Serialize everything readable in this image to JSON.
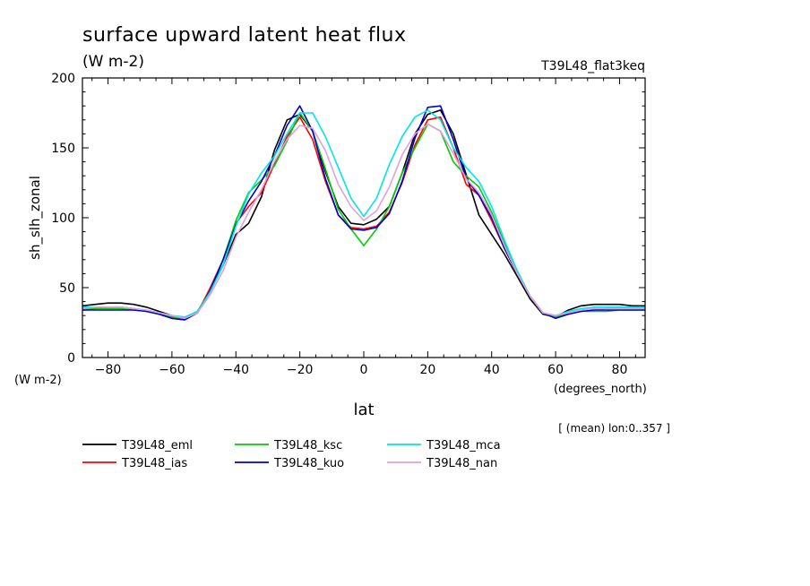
{
  "chart_data": {
    "type": "line",
    "title": "surface upward latent heat flux",
    "units": "(W m-2)",
    "subtitle_right": "T39L48_flat3keq",
    "xlabel": "lat",
    "x_units": "(degrees_north)",
    "ylabel": "sh_slh_zonal",
    "y_units": "(W m-2)",
    "note": "[ (mean) lon:0..357 ]",
    "xlim": [
      -88,
      88
    ],
    "ylim": [
      0,
      200
    ],
    "x_ticks": [
      -80,
      -60,
      -40,
      -20,
      0,
      20,
      40,
      60,
      80
    ],
    "y_ticks": [
      0,
      50,
      100,
      150,
      200
    ],
    "x": [
      -88,
      -84,
      -80,
      -76,
      -72,
      -68,
      -64,
      -60,
      -56,
      -52,
      -48,
      -44,
      -40,
      -36,
      -32,
      -28,
      -24,
      -20,
      -16,
      -12,
      -8,
      -4,
      0,
      4,
      8,
      12,
      16,
      20,
      24,
      28,
      32,
      36,
      40,
      44,
      48,
      52,
      56,
      60,
      64,
      68,
      72,
      76,
      80,
      84,
      88
    ],
    "series": [
      {
        "name": "T39L48_eml",
        "color": "#000000",
        "values": [
          37,
          38,
          39,
          39,
          38,
          36,
          33,
          30,
          28,
          33,
          48,
          66,
          88,
          96,
          115,
          148,
          170,
          174,
          162,
          133,
          108,
          96,
          95,
          99,
          108,
          132,
          160,
          174,
          177,
          160,
          131,
          102,
          88,
          74,
          58,
          42,
          31,
          29,
          34,
          37,
          38,
          38,
          38,
          37,
          37
        ]
      },
      {
        "name": "T39L48_ias",
        "color": "#ff0000",
        "values": [
          34,
          35,
          36,
          36,
          35,
          33,
          31,
          28,
          27,
          32,
          50,
          70,
          96,
          108,
          118,
          138,
          158,
          172,
          156,
          126,
          102,
          93,
          92,
          94,
          104,
          125,
          152,
          170,
          172,
          150,
          124,
          116,
          98,
          78,
          60,
          44,
          32,
          29,
          31,
          33,
          34,
          35,
          35,
          35,
          35
        ]
      },
      {
        "name": "T39L48_ksc",
        "color": "#00cc00",
        "values": [
          35,
          35,
          35,
          35,
          34,
          33,
          31,
          29,
          28,
          32,
          48,
          70,
          98,
          118,
          127,
          137,
          155,
          175,
          162,
          135,
          106,
          92,
          80,
          92,
          108,
          132,
          150,
          167,
          162,
          140,
          130,
          122,
          104,
          82,
          62,
          44,
          32,
          29,
          32,
          33,
          33,
          33,
          34,
          34,
          34
        ]
      },
      {
        "name": "T39L48_kuo",
        "color": "#0000cc",
        "values": [
          34,
          34,
          34,
          34,
          34,
          33,
          31,
          28,
          27,
          32,
          48,
          70,
          95,
          112,
          126,
          144,
          166,
          180,
          162,
          128,
          102,
          92,
          91,
          93,
          103,
          126,
          157,
          179,
          180,
          156,
          128,
          116,
          100,
          78,
          60,
          44,
          32,
          28,
          31,
          33,
          34,
          34,
          34,
          34,
          34
        ]
      },
      {
        "name": "T39L48_mca",
        "color": "#00e5e5",
        "values": [
          36,
          36,
          36,
          36,
          35,
          34,
          32,
          30,
          29,
          33,
          47,
          66,
          94,
          117,
          132,
          144,
          160,
          175,
          175,
          158,
          136,
          114,
          101,
          114,
          138,
          158,
          172,
          177,
          170,
          150,
          136,
          126,
          108,
          84,
          62,
          44,
          32,
          30,
          33,
          35,
          36,
          36,
          36,
          36,
          36
        ]
      },
      {
        "name": "T39L48_nan",
        "color": "#e0a0e0",
        "values": [
          35,
          36,
          36,
          36,
          35,
          34,
          32,
          30,
          28,
          32,
          45,
          62,
          86,
          104,
          120,
          140,
          156,
          166,
          164,
          148,
          124,
          108,
          98,
          105,
          122,
          145,
          160,
          167,
          162,
          146,
          128,
          118,
          102,
          80,
          60,
          44,
          32,
          30,
          32,
          34,
          35,
          35,
          35,
          35,
          35
        ]
      }
    ]
  }
}
